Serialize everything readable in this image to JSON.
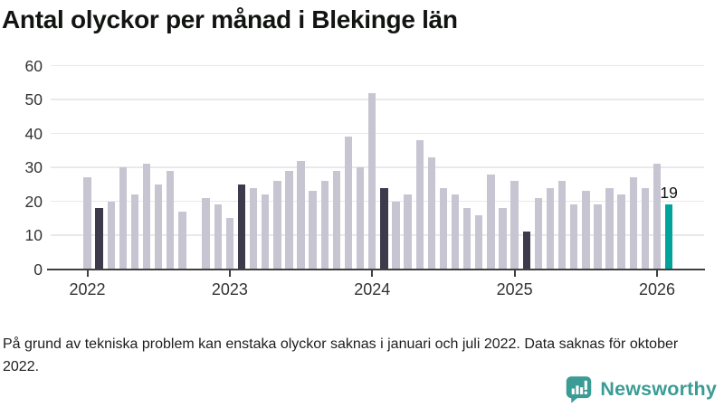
{
  "title": "Antal olyckor per månad i Blekinge län",
  "footnote": "På grund av tekniska problem kan enstaka olyckor saknas i januari och juli 2022. Data saknas för oktober 2022.",
  "brand": {
    "name": "Newsworthy"
  },
  "colors": {
    "bar": "#c7c5d2",
    "bar_highlight": "#3d3a4c",
    "bar_latest": "#00a49a",
    "axis": "#404040",
    "grid": "#e9e9ec",
    "title_text": "#121412",
    "label_text": "#333333",
    "annotation_text": "#111111",
    "brand_teal": "#3b9c95"
  },
  "chart_data": {
    "type": "bar",
    "title": "Antal olyckor per månad i Blekinge län",
    "xlabel": "",
    "ylabel": "",
    "ylim": [
      0,
      60
    ],
    "yticks": [
      0,
      10,
      20,
      30,
      40,
      50,
      60
    ],
    "x_tick_labels": [
      "2022",
      "2023",
      "2024",
      "2025",
      "2026"
    ],
    "grid": "horizontal-only",
    "legend": "none",
    "missing_months": [
      "2022-10"
    ],
    "annotation": {
      "month": "2026-02",
      "text": "19"
    },
    "series": [
      {
        "month": "2022-01",
        "value": 27,
        "kind": "default"
      },
      {
        "month": "2022-02",
        "value": 18,
        "kind": "highlight"
      },
      {
        "month": "2022-03",
        "value": 20,
        "kind": "default"
      },
      {
        "month": "2022-04",
        "value": 30,
        "kind": "default"
      },
      {
        "month": "2022-05",
        "value": 22,
        "kind": "default"
      },
      {
        "month": "2022-06",
        "value": 31,
        "kind": "default"
      },
      {
        "month": "2022-07",
        "value": 25,
        "kind": "default"
      },
      {
        "month": "2022-08",
        "value": 29,
        "kind": "default"
      },
      {
        "month": "2022-09",
        "value": 17,
        "kind": "default"
      },
      {
        "month": "2022-10",
        "value": null,
        "kind": "missing"
      },
      {
        "month": "2022-11",
        "value": 21,
        "kind": "default"
      },
      {
        "month": "2022-12",
        "value": 19,
        "kind": "default"
      },
      {
        "month": "2023-01",
        "value": 15,
        "kind": "default"
      },
      {
        "month": "2023-02",
        "value": 25,
        "kind": "highlight"
      },
      {
        "month": "2023-03",
        "value": 24,
        "kind": "default"
      },
      {
        "month": "2023-04",
        "value": 22,
        "kind": "default"
      },
      {
        "month": "2023-05",
        "value": 26,
        "kind": "default"
      },
      {
        "month": "2023-06",
        "value": 29,
        "kind": "default"
      },
      {
        "month": "2023-07",
        "value": 32,
        "kind": "default"
      },
      {
        "month": "2023-08",
        "value": 23,
        "kind": "default"
      },
      {
        "month": "2023-09",
        "value": 26,
        "kind": "default"
      },
      {
        "month": "2023-10",
        "value": 29,
        "kind": "default"
      },
      {
        "month": "2023-11",
        "value": 39,
        "kind": "default"
      },
      {
        "month": "2023-12",
        "value": 30,
        "kind": "default"
      },
      {
        "month": "2024-01",
        "value": 52,
        "kind": "default"
      },
      {
        "month": "2024-02",
        "value": 24,
        "kind": "highlight"
      },
      {
        "month": "2024-03",
        "value": 20,
        "kind": "default"
      },
      {
        "month": "2024-04",
        "value": 22,
        "kind": "default"
      },
      {
        "month": "2024-05",
        "value": 38,
        "kind": "default"
      },
      {
        "month": "2024-06",
        "value": 33,
        "kind": "default"
      },
      {
        "month": "2024-07",
        "value": 24,
        "kind": "default"
      },
      {
        "month": "2024-08",
        "value": 22,
        "kind": "default"
      },
      {
        "month": "2024-09",
        "value": 18,
        "kind": "default"
      },
      {
        "month": "2024-10",
        "value": 16,
        "kind": "default"
      },
      {
        "month": "2024-11",
        "value": 28,
        "kind": "default"
      },
      {
        "month": "2024-12",
        "value": 18,
        "kind": "default"
      },
      {
        "month": "2025-01",
        "value": 26,
        "kind": "default"
      },
      {
        "month": "2025-02",
        "value": 11,
        "kind": "highlight"
      },
      {
        "month": "2025-03",
        "value": 21,
        "kind": "default"
      },
      {
        "month": "2025-04",
        "value": 24,
        "kind": "default"
      },
      {
        "month": "2025-05",
        "value": 26,
        "kind": "default"
      },
      {
        "month": "2025-06",
        "value": 19,
        "kind": "default"
      },
      {
        "month": "2025-07",
        "value": 23,
        "kind": "default"
      },
      {
        "month": "2025-08",
        "value": 19,
        "kind": "default"
      },
      {
        "month": "2025-09",
        "value": 24,
        "kind": "default"
      },
      {
        "month": "2025-10",
        "value": 22,
        "kind": "default"
      },
      {
        "month": "2025-11",
        "value": 27,
        "kind": "default"
      },
      {
        "month": "2025-12",
        "value": 24,
        "kind": "default"
      },
      {
        "month": "2026-01",
        "value": 31,
        "kind": "default"
      },
      {
        "month": "2026-02",
        "value": 19,
        "kind": "latest"
      }
    ]
  }
}
